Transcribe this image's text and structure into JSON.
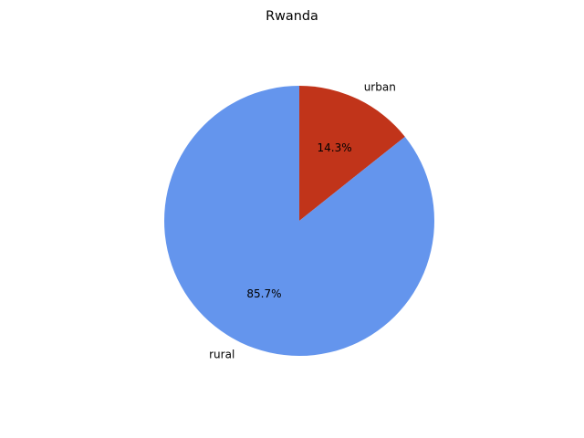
{
  "chart_data": {
    "type": "pie",
    "title": "Rwanda",
    "slices": [
      {
        "label": "urban",
        "value": 14.3,
        "display": "14.3%",
        "color": "#c1341a"
      },
      {
        "label": "rural",
        "value": 85.7,
        "display": "85.7%",
        "color": "#6495ed"
      }
    ],
    "start_angle_deg": 90,
    "direction": "clockwise",
    "legend": "none"
  }
}
